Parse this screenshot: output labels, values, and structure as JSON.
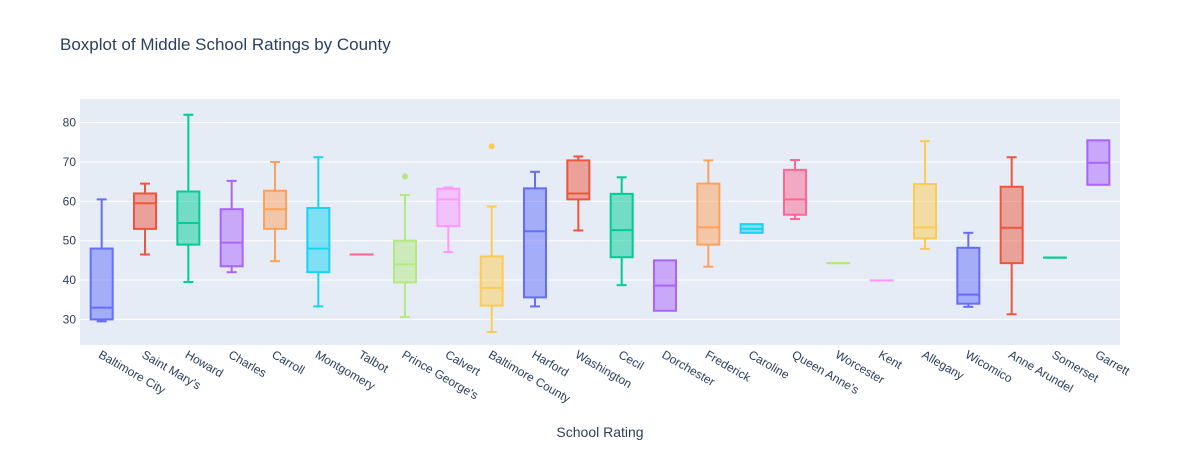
{
  "chart_data": {
    "type": "box",
    "title": "Boxplot of Middle School Ratings by County",
    "xlabel": "School Rating",
    "ylabel": "",
    "ylim": [
      23.5,
      86
    ],
    "yticks": [
      30,
      40,
      50,
      60,
      70,
      80
    ],
    "grid": true,
    "legend": "none",
    "series": [
      {
        "category": "Baltimore City",
        "color": "#636efa",
        "min": 29.5,
        "q1": 30,
        "median": 33,
        "q3": 48,
        "max": 60.5,
        "outliers": []
      },
      {
        "category": "Saint Mary's",
        "color": "#ef553b",
        "min": 46.5,
        "q1": 53,
        "median": 59.5,
        "q3": 62,
        "max": 64.5,
        "outliers": []
      },
      {
        "category": "Howard",
        "color": "#00cc96",
        "min": 39.5,
        "q1": 49,
        "median": 54.5,
        "q3": 62.5,
        "max": 82,
        "outliers": []
      },
      {
        "category": "Charles",
        "color": "#ab63fa",
        "min": 42,
        "q1": 43.5,
        "median": 49.5,
        "q3": 58,
        "max": 65.2,
        "outliers": []
      },
      {
        "category": "Carroll",
        "color": "#ffa15a",
        "min": 44.8,
        "q1": 53,
        "median": 58,
        "q3": 62.7,
        "max": 70,
        "outliers": []
      },
      {
        "category": "Montgomery",
        "color": "#19d3f3",
        "min": 33.3,
        "q1": 42,
        "median": 48,
        "q3": 58.3,
        "max": 71.2,
        "outliers": []
      },
      {
        "category": "Talbot",
        "color": "#ff6692",
        "min": 46.5,
        "q1": 46.5,
        "median": 46.5,
        "q3": 46.5,
        "max": 46.5,
        "outliers": []
      },
      {
        "category": "Prince George's",
        "color": "#b6e880",
        "min": 30.6,
        "q1": 39.4,
        "median": 44,
        "q3": 50,
        "max": 61.6,
        "outliers": [
          66.3
        ]
      },
      {
        "category": "Calvert",
        "color": "#ff97ff",
        "min": 47.1,
        "q1": 53.7,
        "median": 60.5,
        "q3": 63.2,
        "max": 63.5,
        "outliers": []
      },
      {
        "category": "Baltimore County",
        "color": "#fecb52",
        "min": 26.8,
        "q1": 33.5,
        "median": 38,
        "q3": 46,
        "max": 58.7,
        "outliers": [
          74
        ]
      },
      {
        "category": "Harford",
        "color": "#636efa",
        "min": 33.3,
        "q1": 35.6,
        "median": 52.4,
        "q3": 63.3,
        "max": 67.5,
        "outliers": []
      },
      {
        "category": "Washington",
        "color": "#ef553b",
        "min": 52.6,
        "q1": 60.5,
        "median": 62,
        "q3": 70.4,
        "max": 71.4,
        "outliers": []
      },
      {
        "category": "Cecil",
        "color": "#00cc96",
        "min": 38.7,
        "q1": 45.8,
        "median": 52.7,
        "q3": 61.9,
        "max": 66.1,
        "outliers": []
      },
      {
        "category": "Dorchester",
        "color": "#ab63fa",
        "min": 32.2,
        "q1": 32.2,
        "median": 38.6,
        "q3": 45,
        "max": 45,
        "outliers": []
      },
      {
        "category": "Frederick",
        "color": "#ffa15a",
        "min": 43.4,
        "q1": 49,
        "median": 53.4,
        "q3": 64.5,
        "max": 70.4,
        "outliers": []
      },
      {
        "category": "Caroline",
        "color": "#19d3f3",
        "min": 52,
        "q1": 52,
        "median": 53,
        "q3": 54.2,
        "max": 54.2,
        "outliers": []
      },
      {
        "category": "Queen Anne's",
        "color": "#ff6692",
        "min": 55.5,
        "q1": 56.6,
        "median": 60.5,
        "q3": 68,
        "max": 70.5,
        "outliers": []
      },
      {
        "category": "Worcester",
        "color": "#b6e880",
        "min": 44.3,
        "q1": 44.3,
        "median": 44.3,
        "q3": 44.3,
        "max": 44.3,
        "outliers": []
      },
      {
        "category": "Kent",
        "color": "#ff97ff",
        "min": 39.9,
        "q1": 39.9,
        "median": 39.9,
        "q3": 39.9,
        "max": 39.9,
        "outliers": []
      },
      {
        "category": "Allegany",
        "color": "#fecb52",
        "min": 47.9,
        "q1": 50.6,
        "median": 53.4,
        "q3": 64.4,
        "max": 75.3,
        "outliers": []
      },
      {
        "category": "Wicomico",
        "color": "#636efa",
        "min": 33.2,
        "q1": 34,
        "median": 36.3,
        "q3": 48.2,
        "max": 52,
        "outliers": []
      },
      {
        "category": "Anne Arundel",
        "color": "#ef553b",
        "min": 31.3,
        "q1": 44.3,
        "median": 53.3,
        "q3": 63.7,
        "max": 71.2,
        "outliers": []
      },
      {
        "category": "Somerset",
        "color": "#00cc96",
        "min": 45.7,
        "q1": 45.7,
        "median": 45.7,
        "q3": 45.7,
        "max": 45.7,
        "outliers": []
      },
      {
        "category": "Garrett",
        "color": "#ab63fa",
        "min": 64.2,
        "q1": 64.2,
        "median": 69.8,
        "q3": 75.5,
        "max": 75.5,
        "outliers": []
      }
    ]
  }
}
